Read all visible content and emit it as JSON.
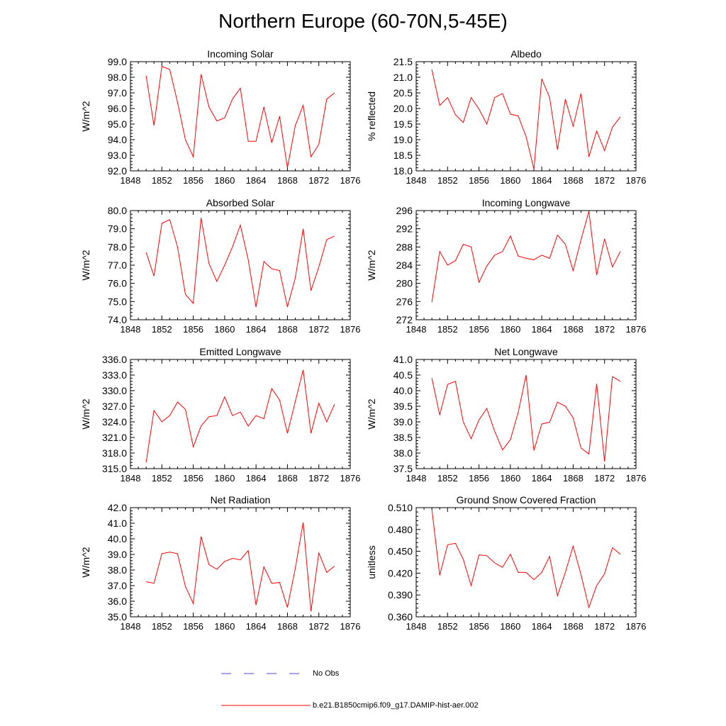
{
  "title": "Northern Europe (60-70N,5-45E)",
  "colors": {
    "series": "#ff0000",
    "obs": "#4a4ad0",
    "axis": "#000000"
  },
  "legend": {
    "obs_label": "No Obs",
    "model_label": "b.e21.B1850cmip6.f09_g17.DAMIP-hist-aer.002"
  },
  "chart_data": [
    {
      "type": "line",
      "title": "Incoming Solar",
      "ylabel": "W/m^2",
      "xlabel": "",
      "xlim": [
        1848,
        1876
      ],
      "xticks": [
        "1848",
        "1852",
        "1856",
        "1860",
        "1864",
        "1868",
        "1872",
        "1876"
      ],
      "ylim": [
        92.0,
        99.0
      ],
      "yticks": [
        "92.0",
        "93.0",
        "94.0",
        "95.0",
        "96.0",
        "97.0",
        "98.0",
        "99.0"
      ],
      "x": [
        1850,
        1851,
        1852,
        1853,
        1854,
        1855,
        1856,
        1857,
        1858,
        1859,
        1860,
        1861,
        1862,
        1863,
        1864,
        1865,
        1866,
        1867,
        1868,
        1869,
        1870,
        1871,
        1872,
        1873,
        1874
      ],
      "series": [
        {
          "name": "b.e21.B1850cmip6.f09_g17.DAMIP-hist-aer.002",
          "values": [
            98.1,
            94.9,
            98.7,
            98.5,
            96.4,
            94.0,
            92.9,
            98.2,
            96.1,
            95.2,
            95.4,
            96.6,
            97.3,
            93.9,
            93.9,
            96.1,
            93.8,
            95.5,
            92.2,
            94.9,
            96.2,
            92.9,
            93.7,
            96.6,
            97.0
          ]
        }
      ]
    },
    {
      "type": "line",
      "title": "Albedo",
      "ylabel": "% reflected",
      "xlabel": "",
      "xlim": [
        1848,
        1876
      ],
      "xticks": [
        "1848",
        "1852",
        "1856",
        "1860",
        "1864",
        "1868",
        "1872",
        "1876"
      ],
      "ylim": [
        18.0,
        21.5
      ],
      "yticks": [
        "18.0",
        "18.5",
        "19.0",
        "19.5",
        "20.0",
        "20.5",
        "21.0",
        "21.5"
      ],
      "x": [
        1850,
        1851,
        1852,
        1853,
        1854,
        1855,
        1856,
        1857,
        1858,
        1859,
        1860,
        1861,
        1862,
        1863,
        1864,
        1865,
        1866,
        1867,
        1868,
        1869,
        1870,
        1871,
        1872,
        1873,
        1874
      ],
      "series": [
        {
          "name": "b.e21.B1850cmip6.f09_g17.DAMIP-hist-aer.002",
          "values": [
            21.25,
            20.1,
            20.35,
            19.8,
            19.55,
            20.35,
            19.98,
            19.5,
            20.35,
            20.48,
            19.82,
            19.76,
            19.1,
            18.05,
            20.95,
            20.35,
            18.68,
            20.3,
            19.43,
            20.48,
            18.45,
            19.28,
            18.65,
            19.4,
            19.73
          ]
        }
      ]
    },
    {
      "type": "line",
      "title": "Absorbed Solar",
      "ylabel": "W/m^2",
      "xlabel": "",
      "xlim": [
        1848,
        1876
      ],
      "xticks": [
        "1848",
        "1852",
        "1856",
        "1860",
        "1864",
        "1868",
        "1872",
        "1876"
      ],
      "ylim": [
        74.0,
        80.0
      ],
      "yticks": [
        "74.0",
        "75.0",
        "76.0",
        "77.0",
        "78.0",
        "79.0",
        "80.0"
      ],
      "x": [
        1850,
        1851,
        1852,
        1853,
        1854,
        1855,
        1856,
        1857,
        1858,
        1859,
        1860,
        1861,
        1862,
        1863,
        1864,
        1865,
        1866,
        1867,
        1868,
        1869,
        1870,
        1871,
        1872,
        1873,
        1874
      ],
      "series": [
        {
          "name": "b.e21.B1850cmip6.f09_g17.DAMIP-hist-aer.002",
          "values": [
            77.7,
            76.4,
            79.3,
            79.5,
            78.0,
            75.4,
            74.9,
            79.6,
            77.1,
            76.1,
            77.0,
            78.0,
            79.2,
            77.3,
            74.7,
            77.2,
            76.8,
            76.7,
            74.7,
            76.3,
            79.0,
            75.6,
            76.9,
            78.4,
            78.6
          ]
        }
      ]
    },
    {
      "type": "line",
      "title": "Incoming Longwave",
      "ylabel": "W/m^2",
      "xlabel": "",
      "xlim": [
        1848,
        1876
      ],
      "xticks": [
        "1848",
        "1852",
        "1856",
        "1860",
        "1864",
        "1868",
        "1872",
        "1876"
      ],
      "ylim": [
        272,
        296
      ],
      "yticks": [
        "272",
        "276",
        "280",
        "284",
        "288",
        "292",
        "296"
      ],
      "x": [
        1850,
        1851,
        1852,
        1853,
        1854,
        1855,
        1856,
        1857,
        1858,
        1859,
        1860,
        1861,
        1862,
        1863,
        1864,
        1865,
        1866,
        1867,
        1868,
        1869,
        1870,
        1871,
        1872,
        1873,
        1874
      ],
      "series": [
        {
          "name": "b.e21.B1850cmip6.f09_g17.DAMIP-hist-aer.002",
          "values": [
            275.8,
            287.0,
            284.0,
            285.0,
            288.6,
            288.0,
            280.2,
            283.8,
            286.2,
            287.0,
            290.4,
            286.0,
            285.5,
            285.2,
            286.2,
            285.5,
            290.6,
            288.6,
            282.8,
            289.6,
            295.8,
            281.8,
            289.8,
            283.6,
            287.0
          ]
        }
      ]
    },
    {
      "type": "line",
      "title": "Emitted Longwave",
      "ylabel": "W/m^2",
      "xlabel": "",
      "xlim": [
        1848,
        1876
      ],
      "xticks": [
        "1848",
        "1852",
        "1856",
        "1860",
        "1864",
        "1868",
        "1872",
        "1876"
      ],
      "ylim": [
        315.0,
        336.0
      ],
      "yticks": [
        "315.0",
        "318.0",
        "321.0",
        "324.0",
        "327.0",
        "330.0",
        "333.0",
        "336.0"
      ],
      "x": [
        1850,
        1851,
        1852,
        1853,
        1854,
        1855,
        1856,
        1857,
        1858,
        1859,
        1860,
        1861,
        1862,
        1863,
        1864,
        1865,
        1866,
        1867,
        1868,
        1869,
        1870,
        1871,
        1872,
        1873,
        1874
      ],
      "series": [
        {
          "name": "b.e21.B1850cmip6.f09_g17.DAMIP-hist-aer.002",
          "values": [
            316.2,
            326.2,
            324.0,
            325.2,
            327.8,
            326.4,
            319.2,
            323.2,
            325.0,
            325.2,
            328.8,
            325.2,
            325.9,
            323.2,
            325.2,
            324.6,
            330.4,
            328.2,
            321.8,
            327.9,
            334.0,
            321.8,
            327.6,
            324.0,
            327.4
          ]
        }
      ]
    },
    {
      "type": "line",
      "title": "Net Longwave",
      "ylabel": "W/m^2",
      "xlabel": "",
      "xlim": [
        1848,
        1876
      ],
      "xticks": [
        "1848",
        "1852",
        "1856",
        "1860",
        "1864",
        "1868",
        "1872",
        "1876"
      ],
      "ylim": [
        37.5,
        41.0
      ],
      "yticks": [
        "37.5",
        "38.0",
        "38.5",
        "39.0",
        "39.5",
        "40.0",
        "40.5",
        "41.0"
      ],
      "x": [
        1850,
        1851,
        1852,
        1853,
        1854,
        1855,
        1856,
        1857,
        1858,
        1859,
        1860,
        1861,
        1862,
        1863,
        1864,
        1865,
        1866,
        1867,
        1868,
        1869,
        1870,
        1871,
        1872,
        1873,
        1874
      ],
      "series": [
        {
          "name": "b.e21.B1850cmip6.f09_g17.DAMIP-hist-aer.002",
          "values": [
            40.4,
            39.22,
            40.2,
            40.3,
            39.0,
            38.46,
            39.06,
            39.43,
            38.7,
            38.1,
            38.43,
            39.3,
            40.5,
            38.08,
            38.93,
            38.99,
            39.63,
            39.5,
            39.13,
            38.16,
            37.97,
            40.22,
            37.73,
            40.45,
            40.3
          ]
        }
      ]
    },
    {
      "type": "line",
      "title": "Net Radiation",
      "ylabel": "W/m^2",
      "xlabel": "",
      "xlim": [
        1848,
        1876
      ],
      "xticks": [
        "1848",
        "1852",
        "1856",
        "1860",
        "1864",
        "1868",
        "1872",
        "1876"
      ],
      "ylim": [
        35.0,
        42.0
      ],
      "yticks": [
        "35.0",
        "36.0",
        "37.0",
        "38.0",
        "39.0",
        "40.0",
        "41.0",
        "42.0"
      ],
      "x": [
        1850,
        1851,
        1852,
        1853,
        1854,
        1855,
        1856,
        1857,
        1858,
        1859,
        1860,
        1861,
        1862,
        1863,
        1864,
        1865,
        1866,
        1867,
        1868,
        1869,
        1870,
        1871,
        1872,
        1873,
        1874
      ],
      "series": [
        {
          "name": "b.e21.B1850cmip6.f09_g17.DAMIP-hist-aer.002",
          "values": [
            37.25,
            37.15,
            39.05,
            39.15,
            39.05,
            36.95,
            35.85,
            40.15,
            38.35,
            38.05,
            38.55,
            38.75,
            38.65,
            39.25,
            35.75,
            38.2,
            37.15,
            37.2,
            35.6,
            38.1,
            41.05,
            35.35,
            39.1,
            37.85,
            38.25
          ]
        }
      ]
    },
    {
      "type": "line",
      "title": "Ground Snow Covered Fraction",
      "ylabel": "unitless",
      "xlabel": "",
      "xlim": [
        1848,
        1876
      ],
      "xticks": [
        "1848",
        "1852",
        "1856",
        "1860",
        "1864",
        "1868",
        "1872",
        "1876"
      ],
      "ylim": [
        0.36,
        0.51
      ],
      "yticks": [
        "0.360",
        "0.390",
        "0.420",
        "0.450",
        "0.480",
        "0.510"
      ],
      "x": [
        1850,
        1851,
        1852,
        1853,
        1854,
        1855,
        1856,
        1857,
        1858,
        1859,
        1860,
        1861,
        1862,
        1863,
        1864,
        1865,
        1866,
        1867,
        1868,
        1869,
        1870,
        1871,
        1872,
        1873,
        1874
      ],
      "series": [
        {
          "name": "b.e21.B1850cmip6.f09_g17.DAMIP-hist-aer.002",
          "values": [
            0.508,
            0.417,
            0.459,
            0.461,
            0.439,
            0.403,
            0.445,
            0.444,
            0.434,
            0.428,
            0.446,
            0.421,
            0.421,
            0.411,
            0.421,
            0.443,
            0.389,
            0.421,
            0.457,
            0.418,
            0.373,
            0.403,
            0.419,
            0.455,
            0.446
          ]
        }
      ]
    }
  ]
}
